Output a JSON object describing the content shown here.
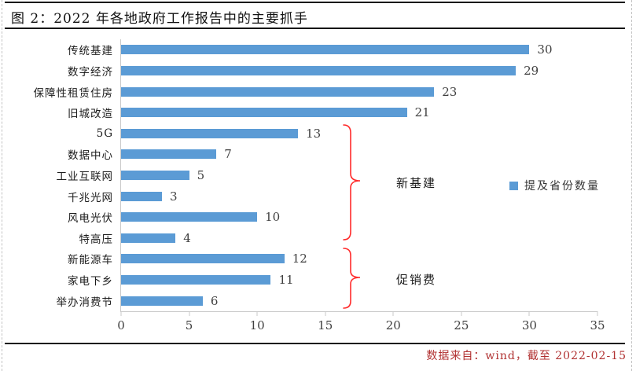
{
  "figure": {
    "title": "图 2：2022 年各地政府工作报告中的主要抓手",
    "source_note": "数据来自：wind，截至 2022-02-15"
  },
  "legend": {
    "label": "提及省份数量"
  },
  "groups": [
    {
      "label": "新基建",
      "items": [
        "5G",
        "数据中心",
        "工业互联网",
        "千兆光网",
        "风电光伏",
        "特高压"
      ]
    },
    {
      "label": "促销费",
      "items": [
        "新能源车",
        "家电下乡",
        "举办消费节"
      ]
    }
  ],
  "colors": {
    "bar": "#5B9BD5",
    "bracket": "#FF2B2B",
    "source_text": "#B03030",
    "axis": "#C9C9C9"
  },
  "chart_data": {
    "type": "bar",
    "orientation": "horizontal",
    "title": "图 2：2022 年各地政府工作报告中的主要抓手",
    "categories": [
      "传统基建",
      "数字经济",
      "保障性租赁住房",
      "旧城改造",
      "5G",
      "数据中心",
      "工业互联网",
      "千兆光网",
      "风电光伏",
      "特高压",
      "新能源车",
      "家电下乡",
      "举办消费节"
    ],
    "values": [
      30,
      29,
      23,
      21,
      13,
      7,
      5,
      3,
      10,
      4,
      12,
      11,
      6
    ],
    "series_name": "提及省份数量",
    "xlabel": "",
    "ylabel": "",
    "xlim": [
      0,
      35
    ],
    "x_ticks": [
      0,
      5,
      10,
      15,
      20,
      25,
      30,
      35
    ],
    "grid": false,
    "legend_position": "right-middle",
    "annotations": [
      {
        "label": "新基建",
        "covers": [
          "5G",
          "特高压"
        ]
      },
      {
        "label": "促销费",
        "covers": [
          "新能源车",
          "举办消费节"
        ]
      }
    ]
  }
}
